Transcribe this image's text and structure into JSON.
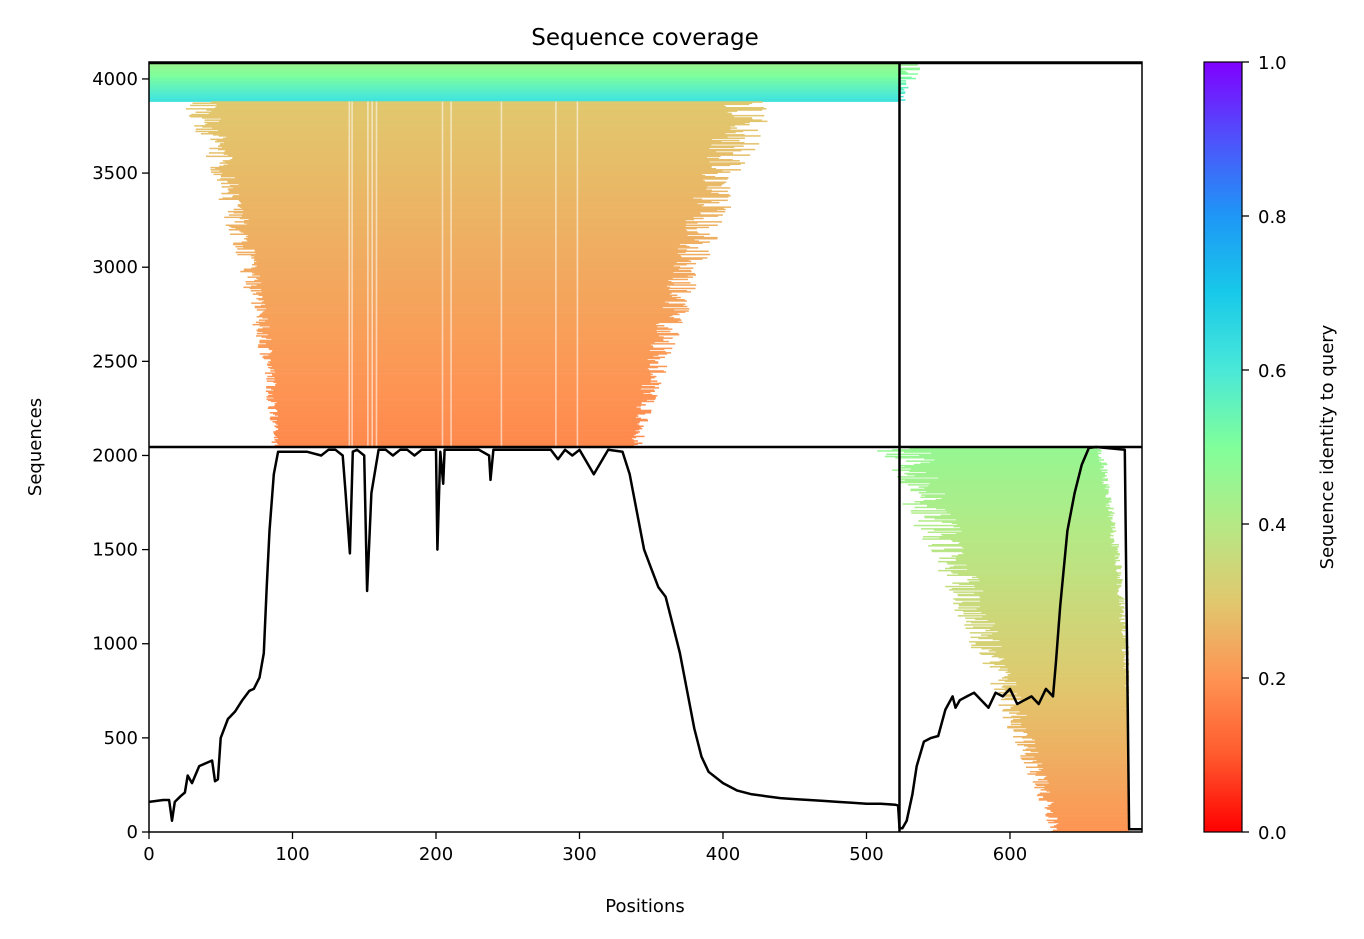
{
  "chart_data": {
    "type": "heatmap",
    "title": "Sequence coverage",
    "xlabel": "Positions",
    "ylabel": "Sequences",
    "colorbar_label": "Sequence identity to query",
    "colormap": "rainbow_r",
    "xlim": [
      0,
      692
    ],
    "ylim": [
      0,
      4090
    ],
    "x_ticks": [
      0,
      100,
      200,
      300,
      400,
      500,
      600
    ],
    "y_ticks": [
      0,
      500,
      1000,
      1500,
      2000,
      2500,
      3000,
      3500,
      4000
    ],
    "colorbar_range": [
      0.0,
      1.0
    ],
    "colorbar_ticks": [
      0.0,
      0.2,
      0.4,
      0.6,
      0.8,
      1.0
    ],
    "chain_boundary_x": 523,
    "block_boundary_y": 2045,
    "grid": false,
    "msa_blocks": [
      {
        "name": "paired_top",
        "seq_range": [
          3880,
          4080
        ],
        "identity": [
          0.62,
          0.45
        ],
        "columns": [
          [
            0,
            523
          ]
        ],
        "right_edge_from": 523,
        "right_edge_to": 523
      },
      {
        "name": "paired_chain1",
        "seq_range": [
          2045,
          3880
        ],
        "identity": [
          0.18,
          0.3
        ],
        "columns": [
          [
            90,
            330
          ]
        ],
        "left_edge_from": 88,
        "left_edge_to": 35,
        "right_edge_from": 340,
        "right_edge_to": 420
      },
      {
        "name": "unpaired_chain2",
        "seq_range": [
          0,
          2040
        ],
        "identity": [
          0.2,
          0.46
        ],
        "columns": [
          [
            632,
            683
          ]
        ],
        "left_edge_from": 632,
        "left_edge_to": 525,
        "right_edge_from": 683,
        "right_edge_to": 660
      }
    ],
    "coverage_line": {
      "x": [
        0,
        10,
        14,
        16,
        18,
        22,
        25,
        27,
        30,
        35,
        44,
        46,
        48,
        50,
        55,
        60,
        65,
        70,
        73,
        77,
        80,
        82,
        84,
        87,
        90,
        100,
        110,
        120,
        125,
        130,
        135,
        137,
        140,
        142,
        145,
        150,
        152,
        155,
        160,
        165,
        170,
        175,
        180,
        185,
        190,
        195,
        200,
        201,
        203,
        205,
        206,
        210,
        220,
        230,
        237,
        238,
        240,
        245,
        250,
        260,
        270,
        280,
        285,
        290,
        295,
        300,
        310,
        320,
        330,
        335,
        340,
        345,
        350,
        355,
        360,
        365,
        370,
        375,
        380,
        385,
        390,
        400,
        410,
        420,
        430,
        440,
        450,
        460,
        470,
        480,
        490,
        500,
        510,
        520,
        522,
        523,
        525,
        528,
        532,
        535,
        540,
        545,
        550,
        555,
        560,
        562,
        565,
        570,
        575,
        580,
        585,
        590,
        595,
        600,
        605,
        610,
        615,
        620,
        625,
        630,
        632,
        635,
        640,
        645,
        650,
        655,
        660,
        680,
        683,
        684,
        692
      ],
      "y": [
        160,
        170,
        170,
        60,
        160,
        190,
        210,
        300,
        260,
        350,
        380,
        270,
        280,
        500,
        600,
        640,
        700,
        750,
        760,
        820,
        950,
        1300,
        1600,
        1900,
        2020,
        2020,
        2020,
        2000,
        2030,
        2030,
        2000,
        1800,
        1480,
        2020,
        2030,
        2000,
        1280,
        1800,
        2030,
        2030,
        2000,
        2030,
        2030,
        2000,
        2030,
        2030,
        2030,
        1500,
        2020,
        1850,
        2030,
        2030,
        2030,
        2030,
        2000,
        1870,
        2030,
        2030,
        2030,
        2030,
        2030,
        2030,
        1980,
        2030,
        2000,
        2030,
        1900,
        2030,
        2020,
        1900,
        1700,
        1500,
        1400,
        1300,
        1250,
        1100,
        950,
        750,
        550,
        400,
        320,
        260,
        220,
        200,
        190,
        180,
        175,
        170,
        165,
        160,
        155,
        150,
        150,
        145,
        140,
        20,
        20,
        60,
        200,
        350,
        480,
        500,
        510,
        650,
        720,
        660,
        700,
        720,
        740,
        700,
        660,
        740,
        720,
        760,
        680,
        700,
        720,
        680,
        760,
        720,
        900,
        1200,
        1600,
        1800,
        1950,
        2040,
        2045,
        2030,
        15,
        15,
        15
      ]
    }
  }
}
